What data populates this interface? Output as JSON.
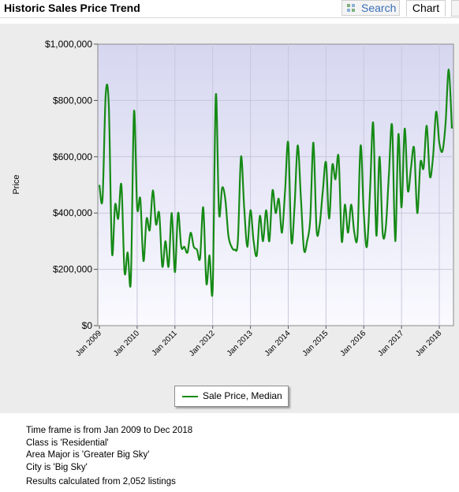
{
  "header": {
    "title": "Historic Sales Price Trend",
    "search_label": "Search",
    "chart_label": "Chart"
  },
  "chart_data": {
    "type": "line",
    "ylabel": "Price",
    "yticks": [
      "$0",
      "$200,000",
      "$400,000",
      "$600,000",
      "$800,000",
      "$1,000,000"
    ],
    "ylim": [
      0,
      1000000
    ],
    "xticks": [
      "Jan 2009",
      "Jan 2010",
      "Jan 2011",
      "Jan 2012",
      "Jan 2013",
      "Jan 2014",
      "Jan 2015",
      "Jan 2016",
      "Jan 2017",
      "Jan 2018"
    ],
    "grid": true,
    "legend_position": "bottom-center",
    "series": [
      {
        "name": "Sale Price, Median",
        "color": "#168a16",
        "x_start": "2009-01",
        "x_end": "2018-12",
        "values": [
          500000,
          450000,
          820000,
          780000,
          260000,
          430000,
          380000,
          500000,
          190000,
          260000,
          160000,
          760000,
          420000,
          450000,
          230000,
          380000,
          340000,
          480000,
          360000,
          400000,
          210000,
          300000,
          210000,
          400000,
          190000,
          400000,
          280000,
          280000,
          260000,
          330000,
          280000,
          270000,
          240000,
          420000,
          150000,
          250000,
          130000,
          820000,
          400000,
          490000,
          450000,
          320000,
          280000,
          270000,
          300000,
          600000,
          420000,
          280000,
          410000,
          300000,
          250000,
          390000,
          300000,
          410000,
          300000,
          480000,
          400000,
          450000,
          330000,
          480000,
          650000,
          300000,
          420000,
          640000,
          460000,
          270000,
          300000,
          380000,
          650000,
          340000,
          360000,
          480000,
          580000,
          380000,
          570000,
          520000,
          600000,
          300000,
          430000,
          330000,
          430000,
          330000,
          320000,
          640000,
          400000,
          280000,
          480000,
          720000,
          320000,
          600000,
          330000,
          350000,
          540000,
          710000,
          300000,
          680000,
          420000,
          700000,
          480000,
          560000,
          630000,
          400000,
          580000,
          560000,
          710000,
          530000,
          600000,
          760000,
          650000,
          620000,
          720000,
          910000,
          700000
        ]
      }
    ]
  },
  "info": {
    "timeframe": "Time frame is from Jan 2009 to Dec 2018",
    "class": "Class is 'Residential'",
    "area": "Area Major is 'Greater Big Sky'",
    "city": "City is 'Big Sky'",
    "results": "Results calculated from 2,052 listings"
  }
}
